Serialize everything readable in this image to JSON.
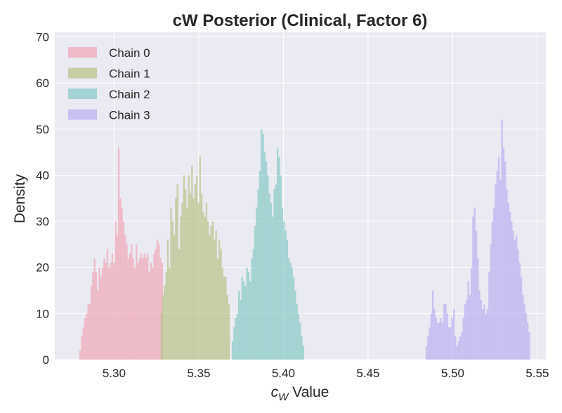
{
  "chart_data": {
    "type": "histogram",
    "title": "cW Posterior (Clinical, Factor 6)",
    "xlabel": "c_W Value",
    "xlabel_parts": {
      "var": "c",
      "sub": "W",
      "rest": " Value"
    },
    "ylabel": "Density",
    "xlim": [
      5.265,
      5.555
    ],
    "ylim": [
      0,
      71
    ],
    "xticks": [
      5.3,
      5.35,
      5.4,
      5.45,
      5.5,
      5.55
    ],
    "xtick_labels": [
      "5.30",
      "5.35",
      "5.40",
      "5.45",
      "5.50",
      "5.55"
    ],
    "yticks": [
      0,
      10,
      20,
      30,
      40,
      50,
      60,
      70
    ],
    "ytick_labels": [
      "0",
      "10",
      "20",
      "30",
      "40",
      "50",
      "60",
      "70"
    ],
    "grid": true,
    "legend_position": "top-left",
    "bin_width": 0.00095,
    "series": [
      {
        "name": "Chain 0",
        "color": "#f0a3b4",
        "x_start": 5.2795,
        "densities": [
          2,
          5,
          7,
          9,
          10,
          12,
          12,
          16,
          19,
          22,
          19,
          15,
          20,
          18,
          20,
          22,
          21,
          24,
          20,
          21,
          23,
          21,
          30,
          27,
          46,
          35,
          33,
          30,
          27,
          25,
          22,
          23,
          25,
          22,
          20,
          25,
          21,
          22,
          23,
          22,
          23,
          22,
          23,
          19,
          21,
          20,
          23,
          24,
          26,
          25,
          22,
          21
        ]
      },
      {
        "name": "Chain 1",
        "color": "#b5c181",
        "x_start": 5.3275,
        "densities": [
          10,
          14,
          16,
          19,
          26,
          20,
          33,
          30,
          27,
          35,
          38,
          24,
          31,
          34,
          40,
          37,
          33,
          40,
          36,
          42,
          35,
          38,
          40,
          34,
          44,
          36,
          32,
          31,
          34,
          30,
          27,
          29,
          30,
          26,
          28,
          22,
          26,
          24,
          20,
          18,
          18,
          14,
          12
        ]
      },
      {
        "name": "Chain 2",
        "color": "#82c9c3",
        "x_start": 5.3695,
        "densities": [
          4,
          7,
          9,
          10,
          15,
          13,
          18,
          17,
          16,
          20,
          19,
          17,
          22,
          24,
          29,
          33,
          37,
          41,
          50,
          49,
          45,
          43,
          40,
          36,
          34,
          31,
          37,
          38,
          46,
          44,
          40,
          33,
          30,
          28,
          26,
          22,
          21,
          20,
          18,
          15,
          12,
          10,
          8,
          5,
          3
        ]
      },
      {
        "name": "Chain 3",
        "color": "#b8acf0",
        "x_start": 5.484,
        "densities": [
          3,
          5,
          7,
          10,
          15,
          11,
          9,
          8,
          8,
          9,
          8,
          12,
          12,
          10,
          7,
          7,
          9,
          11,
          5,
          3,
          4,
          5,
          6,
          9,
          12,
          13,
          17,
          14,
          20,
          31,
          33,
          28,
          22,
          15,
          13,
          11,
          12,
          10,
          11,
          19,
          25,
          30,
          33,
          38,
          41,
          44,
          39,
          52,
          46,
          43,
          37,
          34,
          32,
          30,
          28,
          26,
          27,
          24,
          21,
          18,
          14,
          12,
          10,
          8,
          6
        ]
      }
    ]
  }
}
